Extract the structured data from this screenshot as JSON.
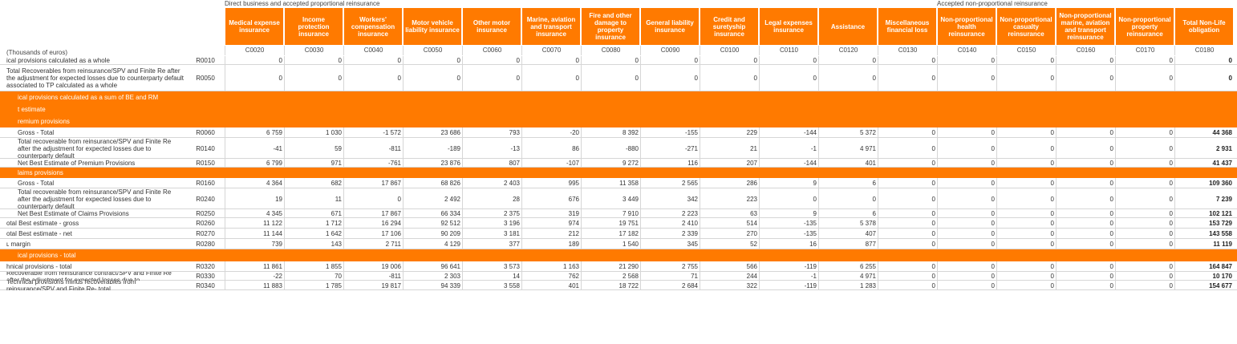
{
  "groups": {
    "direct": "Direct business and accepted proportional reinsurance",
    "nonprop": "Accepted non-proportional reinsurance"
  },
  "unit_label": "(Thousands of euros)",
  "columns": [
    {
      "label": "Medical expense insurance",
      "code": "C0020"
    },
    {
      "label": "Income protection insurance",
      "code": "C0030"
    },
    {
      "label": "Workers' compensation insurance",
      "code": "C0040"
    },
    {
      "label": "Motor vehicle liability insurance",
      "code": "C0050"
    },
    {
      "label": "Other motor insurance",
      "code": "C0060"
    },
    {
      "label": "Marine, aviation and transport insurance",
      "code": "C0070"
    },
    {
      "label": "Fire and other damage to property insurance",
      "code": "C0080"
    },
    {
      "label": "General liability insurance",
      "code": "C0090"
    },
    {
      "label": "Credit and suretyship insurance",
      "code": "C0100"
    },
    {
      "label": "Legal expenses insurance",
      "code": "C0110"
    },
    {
      "label": "Assistance",
      "code": "C0120"
    },
    {
      "label": "Miscellaneous financial loss",
      "code": "C0130"
    },
    {
      "label": "Non-proportional health reinsurance",
      "code": "C0140"
    },
    {
      "label": "Non-proportional casualty reinsurance",
      "code": "C0150"
    },
    {
      "label": "Non-proportional marine, aviation and transport reinsurance",
      "code": "C0160"
    },
    {
      "label": "Non-proportional property reinsurance",
      "code": "C0170"
    },
    {
      "label": "Total Non-Life obligation",
      "code": "C0180"
    }
  ],
  "rows": [
    {
      "kind": "data",
      "label": "ical provisions calculated as a whole",
      "code": "R0010",
      "values": [
        "0",
        "0",
        "0",
        "0",
        "0",
        "0",
        "0",
        "0",
        "0",
        "0",
        "0",
        "0",
        "0",
        "0",
        "0",
        "0",
        "0"
      ]
    },
    {
      "kind": "data",
      "label": "Total Recoverables from reinsurance/SPV and Finite Re after the adjustment for expected losses due to counterparty default associated to TP calculated as a whole",
      "code": "R0050",
      "values": [
        "0",
        "0",
        "0",
        "0",
        "0",
        "0",
        "0",
        "0",
        "0",
        "0",
        "0",
        "0",
        "0",
        "0",
        "0",
        "0",
        "0"
      ]
    },
    {
      "kind": "section",
      "label": "ical provisions calculated as a sum of BE and RM"
    },
    {
      "kind": "section",
      "label": "t estimate"
    },
    {
      "kind": "section",
      "label": "remium provisions"
    },
    {
      "kind": "data",
      "label": "Gross - Total",
      "code": "R0060",
      "values": [
        "6 759",
        "1 030",
        "-1 572",
        "23 686",
        "793",
        "-20",
        "8 392",
        "-155",
        "229",
        "-144",
        "5 372",
        "0",
        "0",
        "0",
        "0",
        "0",
        "44 368"
      ]
    },
    {
      "kind": "data",
      "label": "Total recoverable from reinsurance/SPV and Finite Re after the adjustment for expected losses due to counterparty default",
      "code": "R0140",
      "values": [
        "-41",
        "59",
        "-811",
        "-189",
        "-13",
        "86",
        "-880",
        "-271",
        "21",
        "-1",
        "4 971",
        "0",
        "0",
        "0",
        "0",
        "0",
        "2 931"
      ]
    },
    {
      "kind": "data",
      "label": "Net Best Estimate of Premium Provisions",
      "code": "R0150",
      "values": [
        "6 799",
        "971",
        "-761",
        "23 876",
        "807",
        "-107",
        "9 272",
        "116",
        "207",
        "-144",
        "401",
        "0",
        "0",
        "0",
        "0",
        "0",
        "41 437"
      ]
    },
    {
      "kind": "section",
      "label": "laims provisions"
    },
    {
      "kind": "data",
      "label": "Gross - Total",
      "code": "R0160",
      "values": [
        "4 364",
        "682",
        "17 867",
        "68 826",
        "2 403",
        "995",
        "11 358",
        "2 565",
        "286",
        "9",
        "6",
        "0",
        "0",
        "0",
        "0",
        "0",
        "109 360"
      ]
    },
    {
      "kind": "data",
      "label": "Total recoverable from reinsurance/SPV and Finite Re after the adjustment for expected losses due to counterparty default",
      "code": "R0240",
      "values": [
        "19",
        "11",
        "0",
        "2 492",
        "28",
        "676",
        "3 449",
        "342",
        "223",
        "0",
        "0",
        "0",
        "0",
        "0",
        "0",
        "0",
        "7 239"
      ]
    },
    {
      "kind": "data",
      "label": "Net Best Estimate of Claims Provisions",
      "code": "R0250",
      "values": [
        "4 345",
        "671",
        "17 867",
        "66 334",
        "2 375",
        "319",
        "7 910",
        "2 223",
        "63",
        "9",
        "6",
        "0",
        "0",
        "0",
        "0",
        "0",
        "102 121"
      ]
    },
    {
      "kind": "data",
      "label": "otal Best estimate - gross",
      "code": "R0260",
      "values": [
        "11 122",
        "1 712",
        "16 294",
        "92 512",
        "3 196",
        "974",
        "19 751",
        "2 410",
        "514",
        "-135",
        "5 378",
        "0",
        "0",
        "0",
        "0",
        "0",
        "153 729"
      ]
    },
    {
      "kind": "data",
      "label": "otal Best estimate - net",
      "code": "R0270",
      "values": [
        "11 144",
        "1 642",
        "17 106",
        "90 209",
        "3 181",
        "212",
        "17 182",
        "2 339",
        "270",
        "-135",
        "407",
        "0",
        "0",
        "0",
        "0",
        "0",
        "143 558"
      ]
    },
    {
      "kind": "data",
      "label": "ʟ margin",
      "code": "R0280",
      "values": [
        "739",
        "143",
        "2 711",
        "4 129",
        "377",
        "189",
        "1 540",
        "345",
        "52",
        "16",
        "877",
        "0",
        "0",
        "0",
        "0",
        "0",
        "11 119"
      ]
    },
    {
      "kind": "section",
      "label": "ical provisions - total"
    },
    {
      "kind": "data",
      "label": "hnical provisions - total",
      "code": "R0320",
      "values": [
        "11 861",
        "1 855",
        "19 006",
        "96 641",
        "3 573",
        "1 163",
        "21 290",
        "2 755",
        "566",
        "-119",
        "6 255",
        "0",
        "0",
        "0",
        "0",
        "0",
        "164 847"
      ]
    },
    {
      "kind": "data",
      "label": "Recoverable from reinsurance contract/SPV and Finite Re after the adjustment for expected losses due to",
      "code": "R0330",
      "values": [
        "-22",
        "70",
        "-811",
        "2 303",
        "14",
        "762",
        "2 568",
        "71",
        "244",
        "-1",
        "4 971",
        "0",
        "0",
        "0",
        "0",
        "0",
        "10 170"
      ]
    },
    {
      "kind": "data",
      "label": "Technical provisions minus recoverables from reinsurance/SPV and Finite Re- total",
      "code": "R0340",
      "values": [
        "11 883",
        "1 785",
        "19 817",
        "94 339",
        "3 558",
        "401",
        "18 722",
        "2 684",
        "322",
        "-119",
        "1 283",
        "0",
        "0",
        "0",
        "0",
        "0",
        "154 677"
      ]
    }
  ]
}
